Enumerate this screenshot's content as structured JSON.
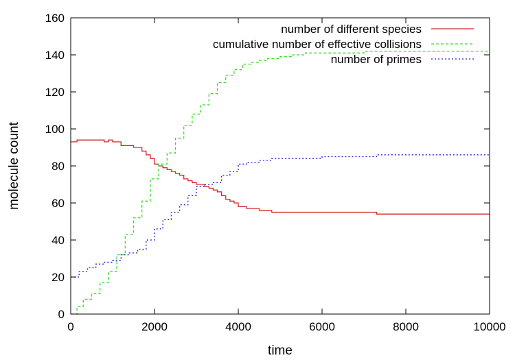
{
  "chart_data": {
    "type": "line",
    "title": "",
    "xlabel": "time",
    "ylabel": "molecule count",
    "xlim": [
      0,
      10000
    ],
    "ylim": [
      0,
      160
    ],
    "xticks": [
      0,
      2000,
      4000,
      6000,
      8000,
      10000
    ],
    "yticks": [
      0,
      20,
      40,
      60,
      80,
      100,
      120,
      140,
      160
    ],
    "grid": false,
    "legend_position": "top-right",
    "step": true,
    "series": [
      {
        "name": "number of different species",
        "color": "#d62728",
        "dash": "solid",
        "x": [
          0,
          150,
          800,
          900,
          1000,
          1200,
          1500,
          1700,
          1800,
          1900,
          2000,
          2100,
          2200,
          2300,
          2400,
          2500,
          2600,
          2700,
          2800,
          2900,
          3000,
          3200,
          3300,
          3400,
          3500,
          3600,
          3700,
          3800,
          3900,
          4000,
          4200,
          4500,
          4800,
          7300,
          10000
        ],
        "y": [
          93,
          94,
          93,
          94,
          93,
          91,
          90,
          88,
          86,
          84,
          81,
          80,
          79,
          78,
          77,
          76,
          75,
          73,
          72,
          71,
          70,
          69,
          68,
          67,
          66,
          64,
          62,
          61,
          60,
          58,
          57,
          56,
          55,
          54,
          54
        ]
      },
      {
        "name": "cumulative number of effective collisions",
        "color": "#33dd22",
        "dash": "4,3",
        "x": [
          0,
          150,
          300,
          500,
          700,
          900,
          1100,
          1300,
          1500,
          1700,
          1900,
          2100,
          2300,
          2500,
          2700,
          2900,
          3100,
          3300,
          3500,
          3700,
          3900,
          4100,
          4300,
          4500,
          4700,
          5000,
          5300,
          5600,
          6000,
          7000,
          10000
        ],
        "y": [
          0,
          4,
          8,
          11,
          17,
          23,
          32,
          43,
          52,
          61,
          73,
          81,
          87,
          95,
          102,
          108,
          113,
          119,
          125,
          129,
          132,
          135,
          136,
          137,
          138,
          139,
          140,
          141,
          141,
          142,
          142
        ]
      },
      {
        "name": "number of primes",
        "color": "#1f1fd6",
        "dash": "2,3",
        "x": [
          0,
          200,
          400,
          600,
          800,
          1000,
          1200,
          1400,
          1600,
          1800,
          2000,
          2200,
          2400,
          2600,
          2800,
          3000,
          3200,
          3400,
          3600,
          3800,
          4000,
          4200,
          4500,
          4800,
          5500,
          6000,
          7300,
          10000
        ],
        "y": [
          20,
          23,
          25,
          27,
          28,
          29,
          32,
          33,
          35,
          40,
          46,
          51,
          55,
          59,
          64,
          69,
          70,
          71,
          75,
          77,
          81,
          82,
          83,
          84,
          84,
          85,
          86,
          86
        ]
      }
    ]
  }
}
